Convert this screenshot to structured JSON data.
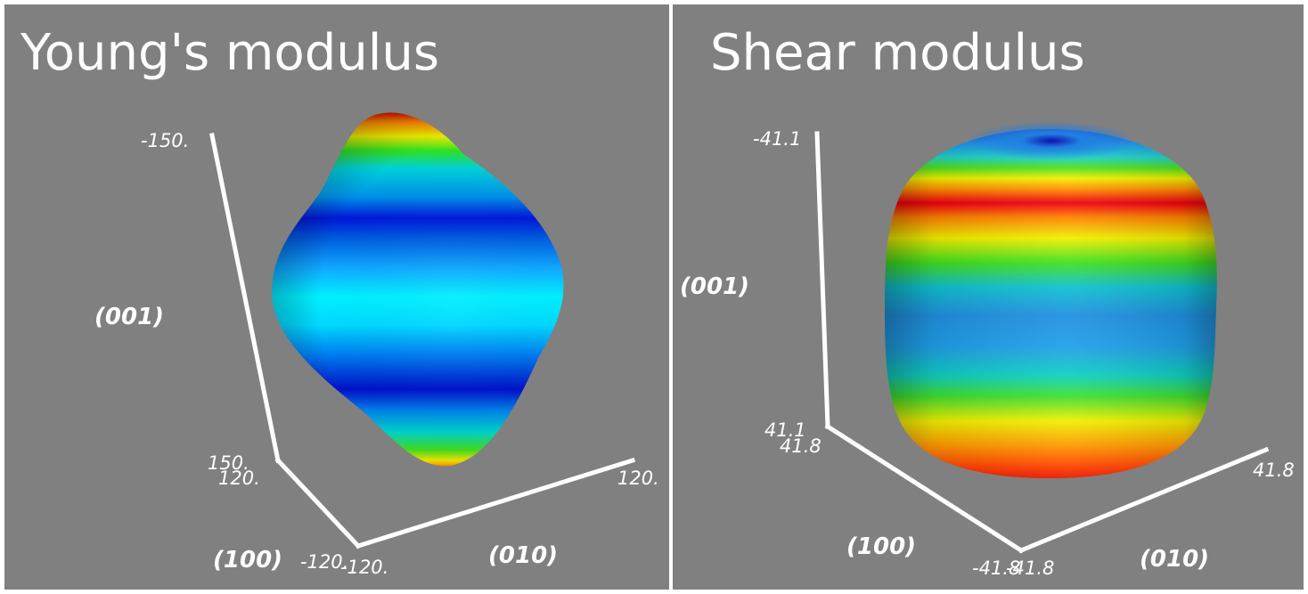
{
  "panels": [
    {
      "title": "Young's modulus",
      "axes": {
        "z_label": "(001)",
        "x_label": "(100)",
        "y_label": "(010)",
        "z_top_tick": "-150.",
        "z_bottom_tick": "150.",
        "x_far_tick": "120.",
        "x_near_tick": "-120.",
        "y_near_tick": "-120.",
        "y_far_tick": "120."
      },
      "colormap": "jet"
    },
    {
      "title": "Shear modulus",
      "axes": {
        "z_label": "(001)",
        "x_label": "(100)",
        "y_label": "(010)",
        "z_top_tick": "-41.1",
        "z_bottom_tick": "41.1",
        "x_far_tick": "41.8",
        "x_near_tick": "-41.8",
        "y_near_tick": "-41.8",
        "y_far_tick": "41.8"
      },
      "colormap": "jet"
    }
  ]
}
